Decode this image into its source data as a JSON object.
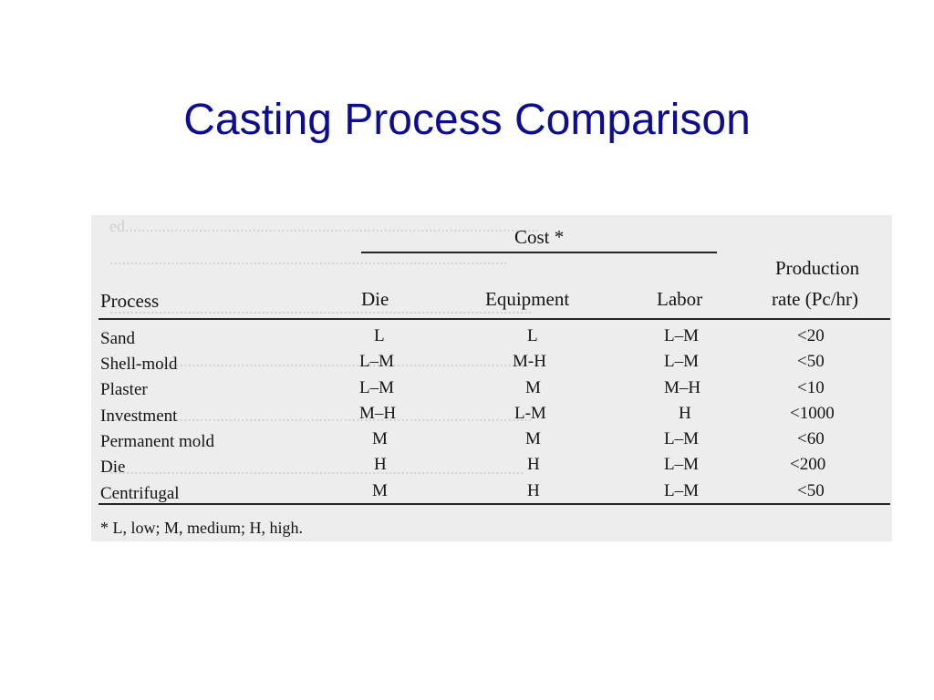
{
  "slide": {
    "title": "Casting Process Comparison"
  },
  "table": {
    "cost_group_label": "Cost *",
    "header_rate_line1": "Production",
    "header_rate_line2": "rate (Pc/hr)",
    "columns": [
      "Process",
      "Die",
      "Equipment",
      "Labor"
    ],
    "rows": [
      {
        "process": "Sand",
        "die": "L",
        "equipment": "L",
        "labor": "L–M",
        "rate": "<20"
      },
      {
        "process": "Shell-mold",
        "die": "L–M",
        "equipment": "M-H",
        "labor": "L–M",
        "rate": "<50"
      },
      {
        "process": "Plaster",
        "die": "L–M",
        "equipment": "M",
        "labor": "M–H",
        "rate": "<10"
      },
      {
        "process": "Investment",
        "die": "M–H",
        "equipment": "L-M",
        "labor": "H",
        "rate": "<1000"
      },
      {
        "process": "Permanent mold",
        "die": "M",
        "equipment": "M",
        "labor": "L–M",
        "rate": "<60"
      },
      {
        "process": "Die",
        "die": "H",
        "equipment": "H",
        "labor": "L–M",
        "rate": "<200"
      },
      {
        "process": "Centrifugal",
        "die": "M",
        "equipment": "H",
        "labor": "L–M",
        "rate": "<50"
      }
    ],
    "footnote": "* L, low; M, medium; H, high."
  },
  "colors": {
    "title": "#0d0d8f",
    "scan_background": "#ededed",
    "text": "#141414",
    "bleed_through": "#cfcfcf"
  }
}
